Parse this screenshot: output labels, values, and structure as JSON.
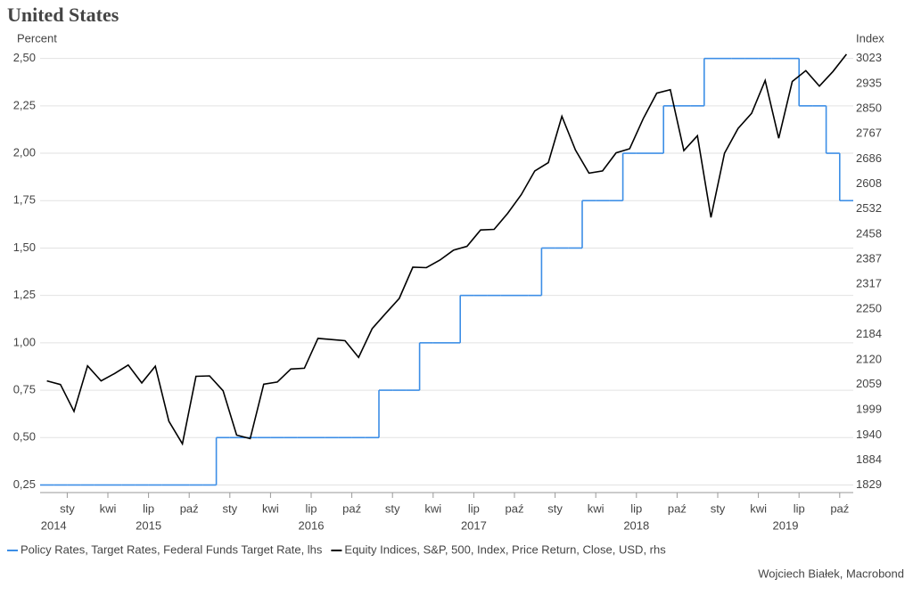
{
  "chart_data": {
    "type": "line",
    "title": "United States",
    "ylabel": "Percent",
    "y2label": "Index",
    "source": "Wojciech Białek, Macrobond",
    "x": [
      "2014-11",
      "2014-12",
      "2015-01",
      "2015-02",
      "2015-03",
      "2015-04",
      "2015-05",
      "2015-06",
      "2015-07",
      "2015-08",
      "2015-09",
      "2015-10",
      "2015-11",
      "2015-12",
      "2016-01",
      "2016-02",
      "2016-03",
      "2016-04",
      "2016-05",
      "2016-06",
      "2016-07",
      "2016-08",
      "2016-09",
      "2016-10",
      "2016-11",
      "2016-12",
      "2017-01",
      "2017-02",
      "2017-03",
      "2017-04",
      "2017-05",
      "2017-06",
      "2017-07",
      "2017-08",
      "2017-09",
      "2017-10",
      "2017-11",
      "2017-12",
      "2018-01",
      "2018-02",
      "2018-03",
      "2018-04",
      "2018-05",
      "2018-06",
      "2018-07",
      "2018-08",
      "2018-09",
      "2018-10",
      "2018-11",
      "2018-12",
      "2019-01",
      "2019-02",
      "2019-03",
      "2019-04",
      "2019-05",
      "2019-06",
      "2019-07",
      "2019-08",
      "2019-09",
      "2019-10"
    ],
    "xlim": [
      "2014-11",
      "2019-11"
    ],
    "xticks": [
      {
        "value": "2015-01",
        "label": "sty"
      },
      {
        "value": "2015-04",
        "label": "kwi"
      },
      {
        "value": "2015-07",
        "label": "lip"
      },
      {
        "value": "2015-10",
        "label": "paź"
      },
      {
        "value": "2016-01",
        "label": "sty"
      },
      {
        "value": "2016-04",
        "label": "kwi"
      },
      {
        "value": "2016-07",
        "label": "lip"
      },
      {
        "value": "2016-10",
        "label": "paź"
      },
      {
        "value": "2017-01",
        "label": "sty"
      },
      {
        "value": "2017-04",
        "label": "kwi"
      },
      {
        "value": "2017-07",
        "label": "lip"
      },
      {
        "value": "2017-10",
        "label": "paź"
      },
      {
        "value": "2018-01",
        "label": "sty"
      },
      {
        "value": "2018-04",
        "label": "kwi"
      },
      {
        "value": "2018-07",
        "label": "lip"
      },
      {
        "value": "2018-10",
        "label": "paź"
      },
      {
        "value": "2019-01",
        "label": "sty"
      },
      {
        "value": "2019-04",
        "label": "kwi"
      },
      {
        "value": "2019-07",
        "label": "lip"
      },
      {
        "value": "2019-10",
        "label": "paź"
      }
    ],
    "years": [
      "2014",
      "2015",
      "2016",
      "2017",
      "2018",
      "2019"
    ],
    "ylim": [
      0.21,
      2.55
    ],
    "yticks": [
      {
        "value": 0.25,
        "label": "0,25"
      },
      {
        "value": 0.5,
        "label": "0,50"
      },
      {
        "value": 0.75,
        "label": "0,75"
      },
      {
        "value": 1.0,
        "label": "1,00"
      },
      {
        "value": 1.25,
        "label": "1,25"
      },
      {
        "value": 1.5,
        "label": "1,50"
      },
      {
        "value": 1.75,
        "label": "1,75"
      },
      {
        "value": 2.0,
        "label": "2,00"
      },
      {
        "value": 2.25,
        "label": "2,25"
      },
      {
        "value": 2.5,
        "label": "2,50"
      }
    ],
    "y2lim": [
      1813,
      3057
    ],
    "y2log": true,
    "y2ticks": [
      1829,
      1884,
      1940,
      1999,
      2059,
      2120,
      2184,
      2250,
      2317,
      2387,
      2458,
      2532,
      2608,
      2686,
      2767,
      2850,
      2935,
      3023
    ],
    "grid": true,
    "legend": "bottom",
    "series": [
      {
        "name": "Policy Rates, Target Rates, Federal Funds Target Rate, lhs",
        "color": "#3c8ee6",
        "step": true,
        "values": [
          0.25,
          0.25,
          0.25,
          0.25,
          0.25,
          0.25,
          0.25,
          0.25,
          0.25,
          0.25,
          0.25,
          0.25,
          0.25,
          0.5,
          0.5,
          0.5,
          0.5,
          0.5,
          0.5,
          0.5,
          0.5,
          0.5,
          0.5,
          0.5,
          0.5,
          0.75,
          0.75,
          0.75,
          1.0,
          1.0,
          1.0,
          1.25,
          1.25,
          1.25,
          1.25,
          1.25,
          1.25,
          1.5,
          1.5,
          1.5,
          1.75,
          1.75,
          1.75,
          2.0,
          2.0,
          2.0,
          2.25,
          2.25,
          2.25,
          2.5,
          2.5,
          2.5,
          2.5,
          2.5,
          2.5,
          2.5,
          2.25,
          2.25,
          2.0,
          1.75
        ]
      },
      {
        "name": "Equity Indices, S&P, 500, Index, Price Return, Close, USD, rhs",
        "color": "#000000",
        "axis": "y2",
        "values": [
          2068,
          2059,
          1995,
          2105,
          2068,
          2086,
          2107,
          2063,
          2104,
          1972,
          1920,
          2079,
          2080,
          2044,
          1940,
          1932,
          2060,
          2065,
          2097,
          2099,
          2174,
          2171,
          2168,
          2126,
          2199,
          2239,
          2279,
          2364,
          2363,
          2384,
          2412,
          2423,
          2470,
          2472,
          2519,
          2575,
          2648,
          2674,
          2824,
          2714,
          2641,
          2648,
          2705,
          2718,
          2816,
          2902,
          2914,
          2712,
          2760,
          2507,
          2704,
          2784,
          2834,
          2946,
          2752,
          2942,
          2980,
          2926,
          2977,
          3038
        ]
      }
    ]
  }
}
